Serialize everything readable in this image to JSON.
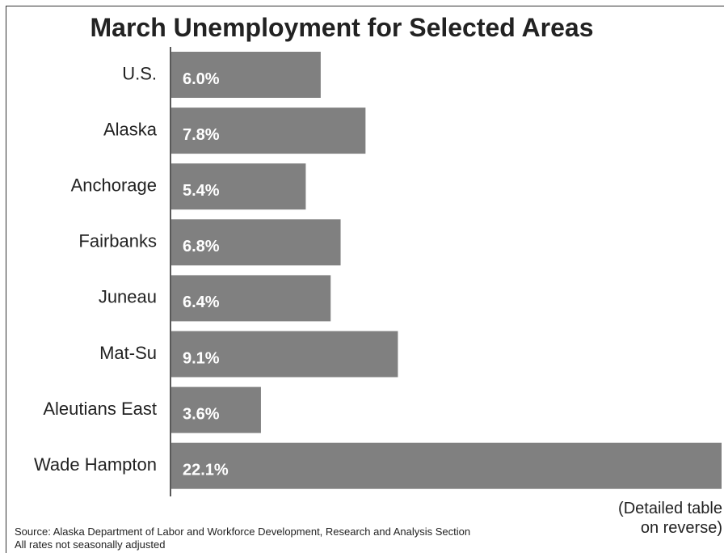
{
  "chart_data": {
    "type": "bar",
    "orientation": "horizontal",
    "title": "March Unemployment for Selected Areas",
    "categories": [
      "U.S.",
      "Alaska",
      "Anchorage",
      "Fairbanks",
      "Juneau",
      "Mat-Su",
      "Aleutians East",
      "Wade Hampton"
    ],
    "values": [
      6.0,
      7.8,
      5.4,
      6.8,
      6.4,
      9.1,
      3.6,
      22.1
    ],
    "value_labels": [
      "6.0%",
      "7.8%",
      "5.4%",
      "6.8%",
      "6.4%",
      "9.1%",
      "3.6%",
      "22.1%"
    ],
    "xlabel": "",
    "ylabel": "",
    "xlim": [
      0,
      22.1
    ],
    "grid": false,
    "bar_color": "#808080"
  },
  "note": {
    "line1": "(Detailed table",
    "line2": "on reverse)"
  },
  "source": {
    "line1": "Source: Alaska Department of Labor and Workforce Development, Research and Analysis Section",
    "line2": "All rates not seasonally adjusted"
  }
}
